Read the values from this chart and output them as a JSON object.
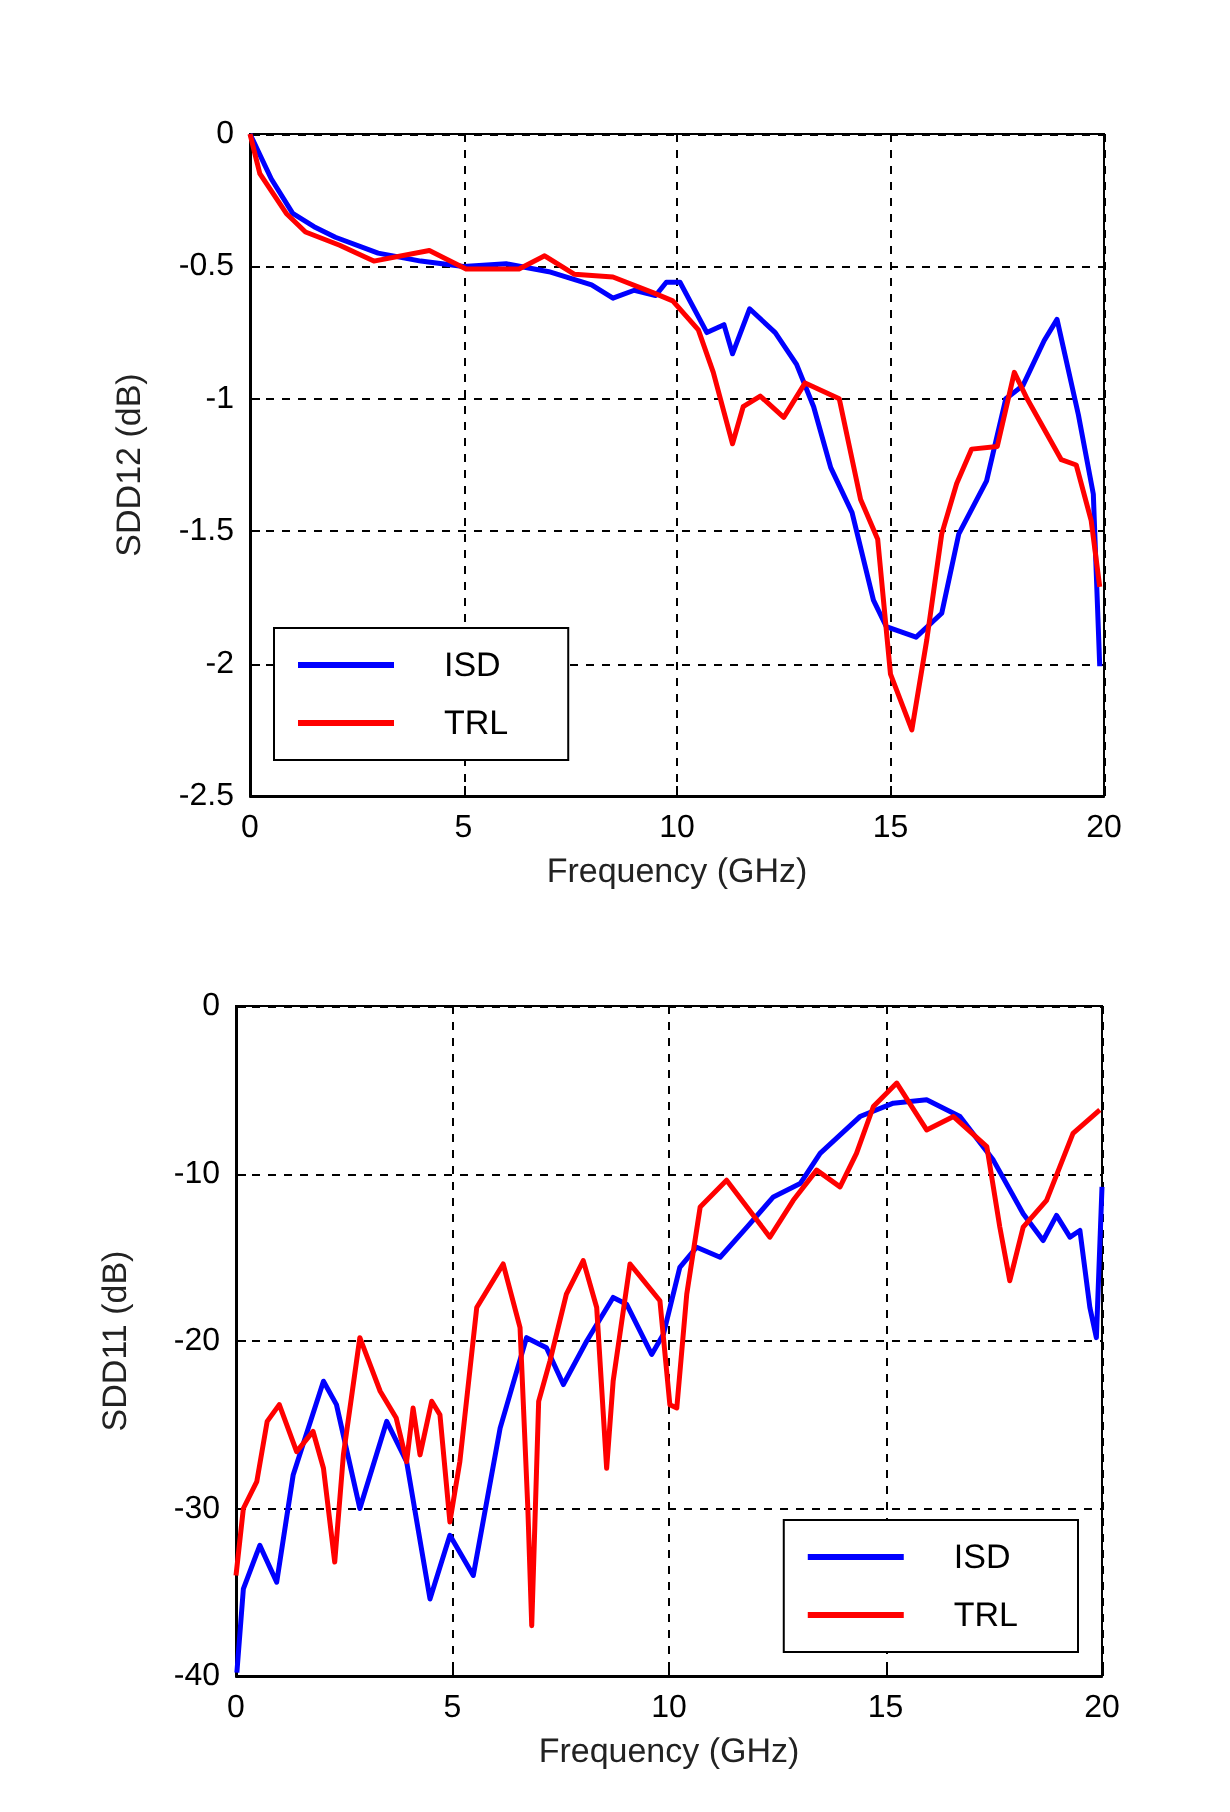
{
  "chart_data": [
    {
      "type": "line",
      "xlabel": "Frequency (GHz)",
      "ylabel": "SDD12 (dB)",
      "xlim": [
        0,
        20
      ],
      "xticks": [
        0,
        5,
        10,
        15,
        20
      ],
      "ylim": [
        -2.5,
        0
      ],
      "yticks": [
        -2.5,
        -2,
        -1.5,
        -1,
        -0.5,
        0
      ],
      "grid": true,
      "legend": "bottom left",
      "marker": "none",
      "line_style": "solid",
      "series": [
        {
          "name": "ISD",
          "color": "#0000ff",
          "x": [
            0,
            0.5,
            1,
            1.5,
            2,
            3,
            4,
            5,
            6,
            7,
            8,
            8.5,
            9,
            9.5,
            9.75,
            10.07,
            10.7,
            11.1,
            11.3,
            11.7,
            12.3,
            12.8,
            13.2,
            13.6,
            14.1,
            14.6,
            14.9,
            15.6,
            16.2,
            16.6,
            17.25,
            17.7,
            18.1,
            18.6,
            18.9,
            19.4,
            19.75,
            19.9
          ],
          "values": [
            0,
            -0.17,
            -0.3,
            -0.35,
            -0.39,
            -0.45,
            -0.48,
            -0.5,
            -0.49,
            -0.52,
            -0.57,
            -0.62,
            -0.59,
            -0.61,
            -0.56,
            -0.56,
            -0.75,
            -0.72,
            -0.83,
            -0.66,
            -0.75,
            -0.87,
            -1.03,
            -1.26,
            -1.43,
            -1.76,
            -1.86,
            -1.9,
            -1.81,
            -1.51,
            -1.31,
            -1,
            -0.95,
            -0.78,
            -0.7,
            -1.06,
            -1.36,
            -2.01
          ]
        },
        {
          "name": "TRL",
          "color": "#ff0000",
          "x": [
            0,
            0.23,
            0.85,
            1.3,
            2.1,
            2.9,
            4.2,
            5.06,
            6.3,
            6.9,
            7.6,
            8.5,
            9.45,
            9.9,
            10.5,
            10.85,
            11.3,
            11.55,
            11.95,
            12.5,
            13,
            13.8,
            14.3,
            14.7,
            15,
            15.5,
            15.85,
            16.2,
            16.55,
            16.9,
            17.5,
            17.9,
            18.2,
            19,
            19.35,
            19.7,
            19.9
          ],
          "values": [
            0,
            -0.15,
            -0.3,
            -0.37,
            -0.42,
            -0.48,
            -0.44,
            -0.51,
            -0.51,
            -0.46,
            -0.53,
            -0.54,
            -0.6,
            -0.63,
            -0.74,
            -0.9,
            -1.17,
            -1.03,
            -0.99,
            -1.07,
            -0.94,
            -1,
            -1.38,
            -1.53,
            -2.04,
            -2.25,
            -1.91,
            -1.51,
            -1.32,
            -1.19,
            -1.18,
            -0.9,
            -1,
            -1.23,
            -1.25,
            -1.46,
            -1.71
          ]
        }
      ]
    },
    {
      "type": "line",
      "xlabel": "Frequency (GHz)",
      "ylabel": "SDD11 (dB)",
      "xlim": [
        0,
        20
      ],
      "xticks": [
        0,
        5,
        10,
        15,
        20
      ],
      "ylim": [
        -40,
        0
      ],
      "yticks": [
        -40,
        -30,
        -20,
        -10,
        0
      ],
      "grid": true,
      "legend": "bottom right",
      "marker": "none",
      "line_style": "solid",
      "series": [
        {
          "name": "ISD",
          "color": "#0000ff",
          "x": [
            0.02,
            0.17,
            0.55,
            0.94,
            1.32,
            2.02,
            2.32,
            2.86,
            3.48,
            3.94,
            4.48,
            4.94,
            5.48,
            6.1,
            6.71,
            7.17,
            7.56,
            8.1,
            8.71,
            9.02,
            9.6,
            9.87,
            10.25,
            10.64,
            11.18,
            11.8,
            12.41,
            13.03,
            13.49,
            14.41,
            15.18,
            15.95,
            16.72,
            17.49,
            18.18,
            18.64,
            18.95,
            19.26,
            19.49,
            19.72,
            19.87,
            20
          ],
          "values": [
            -39.8,
            -34.8,
            -32.2,
            -34.4,
            -28,
            -22.4,
            -23.8,
            -30,
            -24.8,
            -27.2,
            -35.4,
            -31.6,
            -34,
            -25.2,
            -19.8,
            -20.4,
            -22.6,
            -20,
            -17.4,
            -17.8,
            -20.8,
            -19.6,
            -15.6,
            -14.4,
            -15,
            -13.2,
            -11.4,
            -10.6,
            -8.8,
            -6.6,
            -5.8,
            -5.6,
            -6.6,
            -9.2,
            -12.4,
            -14,
            -12.5,
            -13.8,
            -13.4,
            -18,
            -19.8,
            -10.8
          ]
        },
        {
          "name": "TRL",
          "color": "#ff0000",
          "x": [
            0,
            0.17,
            0.48,
            0.72,
            1,
            1.4,
            1.78,
            2.02,
            2.28,
            2.48,
            2.86,
            3.33,
            3.7,
            3.94,
            4.09,
            4.25,
            4.52,
            4.71,
            4.94,
            5.17,
            5.56,
            6.17,
            6.56,
            6.74,
            6.83,
            6.99,
            7.25,
            7.63,
            8.02,
            8.33,
            8.56,
            8.71,
            9.1,
            9.79,
            10.02,
            10.18,
            10.41,
            10.72,
            11.33,
            11.8,
            12.33,
            12.87,
            13.41,
            13.95,
            14.33,
            14.72,
            15.26,
            15.95,
            16.57,
            17.34,
            17.64,
            17.87,
            18.18,
            18.72,
            19.33,
            19.95
          ],
          "values": [
            -34,
            -30,
            -28.4,
            -24.8,
            -23.8,
            -26.6,
            -25.4,
            -27.6,
            -33.2,
            -26.8,
            -19.8,
            -23,
            -24.6,
            -27.2,
            -24,
            -26.8,
            -23.6,
            -24.4,
            -30.8,
            -27.2,
            -18,
            -15.4,
            -19.2,
            -30,
            -37,
            -23.6,
            -21.2,
            -17.2,
            -15.2,
            -18,
            -27.6,
            -22.4,
            -15.4,
            -17.6,
            -23.8,
            -24,
            -17.2,
            -12,
            -10.4,
            -12,
            -13.8,
            -11.6,
            -9.8,
            -10.8,
            -8.8,
            -6,
            -4.6,
            -7.4,
            -6.6,
            -8.4,
            -13.2,
            -16.4,
            -13.2,
            -11.6,
            -7.6,
            -6.2
          ]
        }
      ]
    }
  ]
}
